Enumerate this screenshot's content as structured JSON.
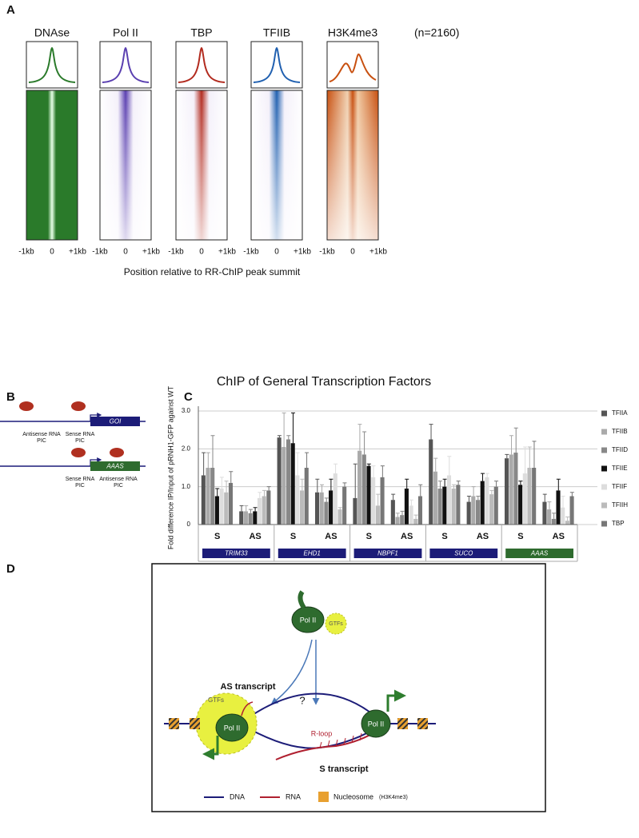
{
  "panel_a": {
    "label": "A",
    "tracks": [
      {
        "name": "DNAse",
        "color": "#2a7a2a"
      },
      {
        "name": "Pol II",
        "color": "#5a3fb0"
      },
      {
        "name": "TBP",
        "color": "#b22a1e"
      },
      {
        "name": "TFIIB",
        "color": "#2060b0"
      },
      {
        "name": "H3K4me3",
        "color": "#c85010"
      }
    ],
    "count": "(n=2160)",
    "x_tick_labels": [
      "-1kb",
      "0",
      "+1kb"
    ],
    "x_axis_label": "Position relative to RR-ChIP peak summit"
  },
  "panel_b": {
    "label": "B",
    "genes": [
      "GOI",
      "AAAS"
    ],
    "pic_labels": [
      [
        "Antisense RNA",
        "PIC"
      ],
      [
        "Sense RNA",
        "PIC"
      ],
      [
        "Sense RNA",
        "PIC"
      ],
      [
        "Antisense RNA",
        "PIC"
      ]
    ]
  },
  "chart_data": {
    "type": "bar",
    "panel_label": "C",
    "title": "ChIP of General Transcription Factors",
    "y_label": "Fold difference IP/Input of pRNH1-GFP against WT",
    "categories": [
      "S",
      "AS",
      "S",
      "AS",
      "S",
      "AS",
      "S",
      "AS",
      "S",
      "AS"
    ],
    "groups": [
      {
        "name": "TRIM33",
        "color": "#1c1c78"
      },
      {
        "name": "EHD1",
        "color": "#1c1c78"
      },
      {
        "name": "NBPF1",
        "color": "#1c1c78"
      },
      {
        "name": "SUCO",
        "color": "#1c1c78"
      },
      {
        "name": "AAAS",
        "color": "#2e6b2e"
      }
    ],
    "ylim": [
      0,
      3
    ],
    "yticks": [
      0,
      {
        "value": 1,
        "label": "1.0"
      },
      {
        "value": 2,
        "label": "2.0"
      },
      {
        "value": 3,
        "label": "3.0"
      }
    ],
    "grid": true,
    "legend": "right",
    "series": [
      {
        "name": "TFIIA",
        "color": "#555555",
        "values": [
          1.3,
          0.35,
          2.3,
          0.85,
          0.7,
          0.65,
          2.25,
          0.6,
          1.75,
          0.6
        ],
        "errors": [
          0.6,
          0.15,
          0.05,
          0.35,
          0.9,
          0.15,
          0.4,
          0.15,
          0.1,
          0.2
        ]
      },
      {
        "name": "TFIIB",
        "color": "#aaaaaa",
        "values": [
          1.5,
          0.35,
          2.05,
          0.85,
          1.95,
          0.2,
          1.4,
          0.75,
          1.85,
          0.4
        ],
        "errors": [
          0.4,
          0.15,
          0.9,
          0.2,
          0.7,
          0.1,
          0.35,
          0.25,
          0.5,
          0.2
        ]
      },
      {
        "name": "TFIID",
        "color": "#888888",
        "values": [
          1.5,
          0.3,
          2.25,
          0.6,
          1.85,
          0.25,
          0.95,
          0.65,
          1.9,
          0.15
        ],
        "errors": [
          0.85,
          0.1,
          0.1,
          0.1,
          0.6,
          0.1,
          0.2,
          0.1,
          0.65,
          0.15
        ]
      },
      {
        "name": "TFIIE",
        "color": "#111111",
        "values": [
          0.75,
          0.35,
          2.15,
          0.9,
          1.55,
          0.95,
          1.0,
          1.15,
          1.05,
          0.9
        ],
        "errors": [
          0.2,
          0.1,
          0.8,
          0.3,
          0.05,
          0.25,
          0.2,
          0.2,
          0.1,
          0.3
        ]
      },
      {
        "name": "TFIIF",
        "color": "#dddddd",
        "values": [
          0.95,
          0.7,
          1.3,
          1.35,
          1.25,
          0.5,
          1.3,
          1.25,
          1.35,
          0.45
        ],
        "errors": [
          0.3,
          0.15,
          0.6,
          0.25,
          0.3,
          0.15,
          0.5,
          0.1,
          0.7,
          0.3
        ]
      },
      {
        "name": "TFIIH",
        "color": "#bbbbbb",
        "values": [
          0.85,
          0.75,
          0.9,
          0.4,
          0.5,
          0.15,
          0.95,
          0.8,
          1.5,
          0.1
        ],
        "errors": [
          0.3,
          0.15,
          0.3,
          0.05,
          0.3,
          0.1,
          0.1,
          0.1,
          0.55,
          0.1
        ]
      },
      {
        "name": "TBP",
        "color": "#777777",
        "values": [
          1.1,
          0.9,
          1.5,
          1.0,
          1.25,
          0.75,
          1.05,
          1.0,
          1.5,
          0.75
        ],
        "errors": [
          0.3,
          0.1,
          0.4,
          0.1,
          0.3,
          0.3,
          0.1,
          0.15,
          0.7,
          0.1
        ]
      }
    ]
  },
  "panel_d": {
    "label": "D",
    "as_transcript": "AS transcript",
    "question": "?",
    "r_loop": "R-loop",
    "s_transcript": "S transcript",
    "pol": "Pol II",
    "gtfs": "GTFs",
    "legend": {
      "dna": "DNA",
      "rna": "RNA",
      "nucleosome": "Nucleosome",
      "mark": "(H3K4me3)"
    }
  }
}
